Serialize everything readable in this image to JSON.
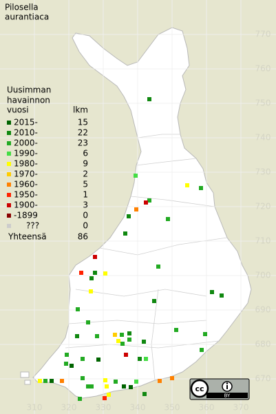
{
  "map": {
    "title": [
      "Pilosella",
      "aurantiaca"
    ],
    "legend_heading": [
      "Uusimman",
      "havainnon",
      "vuosi"
    ],
    "count_heading": "lkm",
    "legend": [
      {
        "label": "2015-",
        "color": "#006400",
        "count": 15
      },
      {
        "label": "2010-",
        "color": "#108810",
        "count": 22
      },
      {
        "label": "2000-",
        "color": "#22aa22",
        "count": 23
      },
      {
        "label": "1990-",
        "color": "#44dd44",
        "count": 6
      },
      {
        "label": "1980-",
        "color": "#ffff00",
        "count": 9
      },
      {
        "label": "1970-",
        "color": "#ffcc00",
        "count": 2
      },
      {
        "label": "1960-",
        "color": "#ff8000",
        "count": 5
      },
      {
        "label": "1950-",
        "color": "#ff2200",
        "count": 1
      },
      {
        "label": "1900-",
        "color": "#cc0000",
        "count": 3
      },
      {
        "label": "-1899",
        "color": "#880000",
        "count": 0
      },
      {
        "label": "???",
        "color": "#cccccc",
        "count": 0
      }
    ],
    "total_label": "Yhteensä",
    "total": 86,
    "license": [
      "cc",
      "BY"
    ],
    "xlim": [
      300,
      380
    ],
    "ylim": [
      660,
      780
    ],
    "xticks": [
      310,
      320,
      330,
      340,
      350,
      360,
      370
    ],
    "yticks": [
      670,
      680,
      690,
      700,
      710,
      720,
      730,
      740,
      750,
      760,
      770
    ],
    "points": [
      {
        "x": 343.4,
        "y": 751.2,
        "period": 1
      },
      {
        "x": 339.4,
        "y": 729,
        "period": 3
      },
      {
        "x": 354.4,
        "y": 726.2,
        "period": 4
      },
      {
        "x": 358.4,
        "y": 725.4,
        "period": 2
      },
      {
        "x": 343.4,
        "y": 721.8,
        "period": 2
      },
      {
        "x": 342.4,
        "y": 721.2,
        "period": 8
      },
      {
        "x": 339.6,
        "y": 719.2,
        "period": 6
      },
      {
        "x": 337.4,
        "y": 717.2,
        "period": 1
      },
      {
        "x": 348.8,
        "y": 716.4,
        "period": 2
      },
      {
        "x": 336.4,
        "y": 712.2,
        "period": 1
      },
      {
        "x": 346,
        "y": 702.6,
        "period": 2
      },
      {
        "x": 327.6,
        "y": 705.4,
        "period": 8
      },
      {
        "x": 323.6,
        "y": 700.8,
        "period": 7
      },
      {
        "x": 327.6,
        "y": 700.8,
        "period": 1
      },
      {
        "x": 330.6,
        "y": 700.6,
        "period": 4
      },
      {
        "x": 326.6,
        "y": 699.2,
        "period": 1
      },
      {
        "x": 361.6,
        "y": 695.2,
        "period": 1
      },
      {
        "x": 364.4,
        "y": 694.2,
        "period": 1
      },
      {
        "x": 326.4,
        "y": 695.4,
        "period": 4
      },
      {
        "x": 344.8,
        "y": 692.6,
        "period": 1
      },
      {
        "x": 322.6,
        "y": 690.2,
        "period": 2
      },
      {
        "x": 325.6,
        "y": 686.4,
        "period": 2
      },
      {
        "x": 351.2,
        "y": 684.2,
        "period": 2
      },
      {
        "x": 359.6,
        "y": 683,
        "period": 2
      },
      {
        "x": 333.4,
        "y": 682.8,
        "period": 5
      },
      {
        "x": 335.4,
        "y": 682.8,
        "period": 2
      },
      {
        "x": 337.6,
        "y": 683.2,
        "period": 1
      },
      {
        "x": 337.6,
        "y": 681.4,
        "period": 2
      },
      {
        "x": 334.4,
        "y": 681,
        "period": 4
      },
      {
        "x": 335.6,
        "y": 680.2,
        "period": 2
      },
      {
        "x": 322.4,
        "y": 682.4,
        "period": 1
      },
      {
        "x": 328.2,
        "y": 682.4,
        "period": 2
      },
      {
        "x": 341.8,
        "y": 680.8,
        "period": 1
      },
      {
        "x": 358.6,
        "y": 678.4,
        "period": 2
      },
      {
        "x": 319.4,
        "y": 677,
        "period": 2
      },
      {
        "x": 336.6,
        "y": 677,
        "period": 8
      },
      {
        "x": 342.4,
        "y": 675.8,
        "period": 3
      },
      {
        "x": 340.6,
        "y": 675.8,
        "period": 1
      },
      {
        "x": 320.8,
        "y": 673.8,
        "period": 0
      },
      {
        "x": 319.2,
        "y": 674.4,
        "period": 2
      },
      {
        "x": 324,
        "y": 675.8,
        "period": 2
      },
      {
        "x": 328.6,
        "y": 675.6,
        "period": 0
      },
      {
        "x": 313.2,
        "y": 669.4,
        "period": 2
      },
      {
        "x": 315,
        "y": 669.4,
        "period": 0
      },
      {
        "x": 311.6,
        "y": 669.4,
        "period": 4
      },
      {
        "x": 324,
        "y": 670.2,
        "period": 2
      },
      {
        "x": 325.6,
        "y": 667.8,
        "period": 2
      },
      {
        "x": 326.6,
        "y": 667.8,
        "period": 2
      },
      {
        "x": 330.6,
        "y": 669.6,
        "period": 4
      },
      {
        "x": 331,
        "y": 667.8,
        "period": 4
      },
      {
        "x": 333.6,
        "y": 669.2,
        "period": 2
      },
      {
        "x": 336,
        "y": 667.8,
        "period": 0
      },
      {
        "x": 338,
        "y": 667.6,
        "period": 0
      },
      {
        "x": 339.6,
        "y": 669.2,
        "period": 3
      },
      {
        "x": 346.4,
        "y": 669.4,
        "period": 6
      },
      {
        "x": 350,
        "y": 670.2,
        "period": 6
      },
      {
        "x": 323.2,
        "y": 664.2,
        "period": 2
      },
      {
        "x": 330.4,
        "y": 664.4,
        "period": 7
      },
      {
        "x": 331.6,
        "y": 665.4,
        "period": 4
      },
      {
        "x": 342,
        "y": 665.6,
        "period": 1
      },
      {
        "x": 318,
        "y": 669.4,
        "period": 6
      }
    ]
  }
}
